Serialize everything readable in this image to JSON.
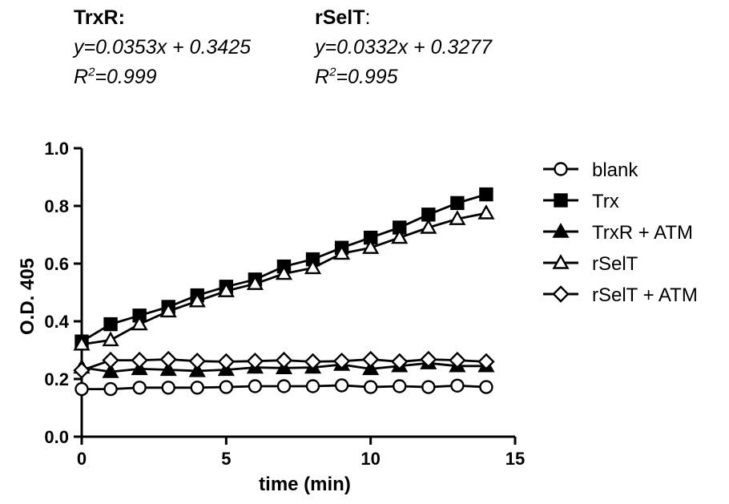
{
  "annotations": {
    "trxr": {
      "heading": "TrxR:",
      "equation": "y=0.0353x + 0.3425",
      "r2_prefix": "R",
      "r2_sup": "2",
      "r2_value": "=0.999"
    },
    "rselt": {
      "heading": "rSelT",
      "heading_suffix": ":",
      "equation": "y=0.0332x + 0.3277",
      "r2_prefix": "R",
      "r2_sup": "2",
      "r2_value": "=0.995"
    }
  },
  "chart_data": {
    "type": "line",
    "xlabel": "time (min)",
    "ylabel": "O.D. 405",
    "xlim": [
      0,
      15
    ],
    "ylim": [
      0,
      1.0
    ],
    "xticks": [
      0,
      5,
      10,
      15
    ],
    "xtick_labels": [
      "0",
      "5",
      "10",
      "15"
    ],
    "yticks": [
      0,
      0.2,
      0.4,
      0.6,
      0.8,
      1.0
    ],
    "ytick_labels": [
      "0.0",
      "0.2",
      "0.4",
      "0.6",
      "0.8",
      "1.0"
    ],
    "grid": false,
    "legend_position": "right",
    "x": [
      0,
      1,
      2,
      3,
      4,
      5,
      6,
      7,
      8,
      9,
      10,
      11,
      12,
      13,
      14
    ],
    "series": [
      {
        "name": "blank",
        "marker": "circle-open",
        "values": [
          0.165,
          0.165,
          0.17,
          0.17,
          0.17,
          0.172,
          0.175,
          0.175,
          0.175,
          0.178,
          0.172,
          0.175,
          0.172,
          0.177,
          0.172
        ]
      },
      {
        "name": "Trx",
        "marker": "square-filled",
        "values": [
          0.33,
          0.39,
          0.42,
          0.45,
          0.49,
          0.52,
          0.545,
          0.59,
          0.615,
          0.655,
          0.69,
          0.725,
          0.77,
          0.81,
          0.84
        ]
      },
      {
        "name": "TrxR + ATM",
        "marker": "triangle-filled",
        "values": [
          0.24,
          0.225,
          0.235,
          0.232,
          0.228,
          0.232,
          0.24,
          0.238,
          0.24,
          0.25,
          0.235,
          0.245,
          0.255,
          0.245,
          0.245
        ]
      },
      {
        "name": "rSelT",
        "marker": "triangle-open",
        "values": [
          0.32,
          0.335,
          0.39,
          0.435,
          0.47,
          0.505,
          0.53,
          0.565,
          0.585,
          0.635,
          0.655,
          0.69,
          0.725,
          0.755,
          0.775
        ]
      },
      {
        "name": "rSelT + ATM",
        "marker": "diamond-open",
        "values": [
          0.23,
          0.265,
          0.265,
          0.268,
          0.262,
          0.26,
          0.262,
          0.265,
          0.26,
          0.262,
          0.268,
          0.26,
          0.268,
          0.265,
          0.26
        ]
      }
    ],
    "colors": {
      "line": "#000000",
      "background": "#ffffff"
    }
  }
}
